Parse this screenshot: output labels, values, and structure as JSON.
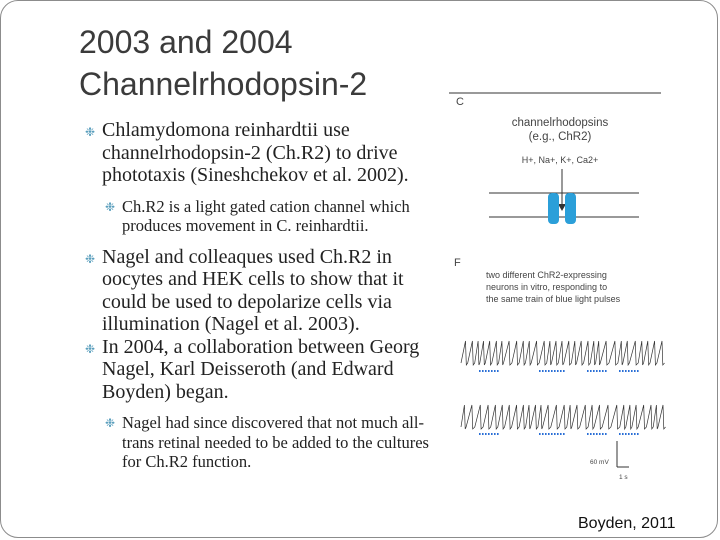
{
  "slide": {
    "title_line1": "2003 and 2004",
    "title_line2": "Channelrhodopsin-2",
    "bullets": [
      "Chlamydomona reinhardtii use channelrhodopsin-2 (Ch.R2) to drive phototaxis (Sineshchekov et al. 2002).",
      "Ch.R2 is a light gated cation channel which produces movement in C. reinhardtii.",
      "Nagel and colleaques used Ch.R2 in oocytes and HEK cells to show that it could be used to depolarize cells via illumination (Nagel et al. 2003).",
      "In 2004, a collaboration between Georg Nagel, Karl Deisseroth (and Edward Boyden) began.",
      "Nagel had since discovered that not much all-trans retinal needed to be added to the cultures for Ch.R2 function."
    ],
    "bullet_marker": "❉",
    "accent_color": "#5b9fbd",
    "credit": "Boyden, 2011"
  },
  "figure": {
    "panel_c_label": "C",
    "panel_c_line1": "channelrhodopsins",
    "panel_c_line2": "(e.g., ChR2)",
    "ions": "H+, Na+, K+, Ca2+",
    "panel_f_label": "F",
    "panel_f_line1": "two different ChR2-expressing",
    "panel_f_line2": "neurons in vitro, responding to",
    "panel_f_line3": "the same train of blue light pulses",
    "scale_mv": "60 mV",
    "scale_s": "1 s",
    "channel_color": "#2b9fd9",
    "pulse_color": "#2a6fd6"
  }
}
